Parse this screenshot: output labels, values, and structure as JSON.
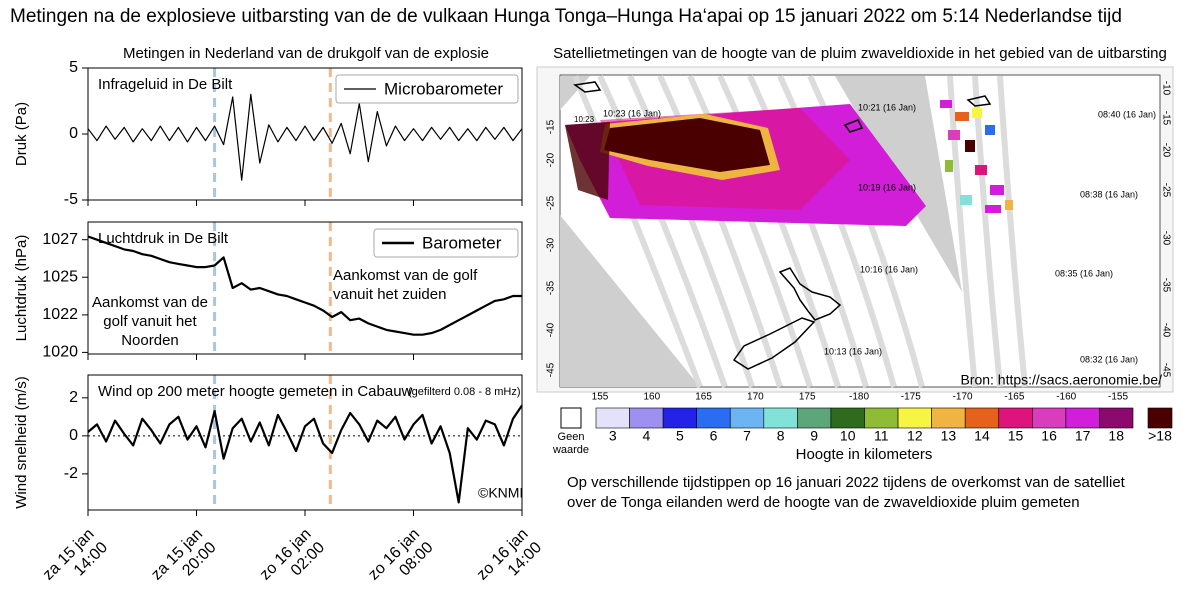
{
  "title": "Metingen na de explosieve uitbarsting van de de vulkaan Hunga Tonga–Hunga Ha‘apai  op 15 januari 2022 om 5:14 Nederlandse tijd",
  "column_title": "Metingen in Nederland van de drukgolf van de explosie",
  "arrival_lines": [
    {
      "x": 7.0,
      "color": "#a9c4e4"
    },
    {
      "x": 13.4,
      "color": "#f3b98b"
    }
  ],
  "chart_data": [
    {
      "type": "line",
      "title": "Infrageluid in De Bilt",
      "ylabel": "Druk (Pa)",
      "x": [
        0,
        0.5,
        1,
        1.5,
        2,
        2.5,
        3,
        3.5,
        4,
        4.5,
        5,
        5.5,
        6,
        6.5,
        7,
        7.5,
        8,
        8.5,
        9,
        9.5,
        10,
        10.5,
        11,
        11.5,
        12,
        12.5,
        13,
        13.5,
        14,
        14.5,
        15,
        15.5,
        16,
        16.5,
        17,
        17.5,
        18,
        18.5,
        19,
        19.5,
        20,
        20.5,
        21,
        21.5,
        22,
        22.5,
        23,
        23.5,
        24
      ],
      "xlim": [
        0,
        24
      ],
      "ylim": [
        -5,
        5
      ],
      "yticks": [
        5,
        0,
        -5
      ],
      "legend": "upper right",
      "series": [
        {
          "name": "Microbarometer",
          "color": "#000000",
          "values": [
            0.4,
            -0.5,
            0.6,
            -0.4,
            0.5,
            -0.6,
            0.4,
            -0.5,
            0.6,
            -0.5,
            0.5,
            -0.6,
            0.5,
            -0.5,
            0.6,
            -0.8,
            2.8,
            -3.5,
            3.0,
            -2.2,
            0.7,
            -0.6,
            0.5,
            -0.5,
            0.6,
            -0.5,
            0.5,
            -0.7,
            0.8,
            -1.5,
            2.3,
            -2.1,
            1.7,
            -0.9,
            0.6,
            -0.5,
            0.4,
            -0.5,
            0.5,
            -0.4,
            0.5,
            -0.5,
            0.4,
            -0.5,
            0.5,
            -0.4,
            0.5,
            -0.5,
            0.4
          ]
        }
      ]
    },
    {
      "type": "line",
      "title": "Luchtdruk in De Bilt",
      "ylabel": "Luchtdruk (hPa)",
      "x": [
        0,
        0.5,
        1,
        1.5,
        2,
        2.5,
        3,
        3.5,
        4,
        4.5,
        5,
        5.5,
        6,
        6.5,
        7,
        7.5,
        8,
        8.5,
        9,
        9.5,
        10,
        10.5,
        11,
        11.5,
        12,
        12.5,
        13,
        13.5,
        14,
        14.5,
        15,
        15.5,
        16,
        16.5,
        17,
        17.5,
        18,
        18.5,
        19,
        19.5,
        20,
        20.5,
        21,
        21.5,
        22,
        22.5,
        23,
        23.5,
        24
      ],
      "xlim": [
        0,
        24
      ],
      "ylim": [
        1019.9,
        1028.1
      ],
      "yticks": [
        1027,
        {
          "value": 1024.67,
          "label": "1025"
        },
        {
          "value": 1022.33,
          "label": "1022"
        },
        1020
      ],
      "legend": "upper right",
      "series": [
        {
          "name": "Barometer",
          "color": "#000000",
          "values": [
            1027.2,
            1027.0,
            1026.8,
            1026.6,
            1026.4,
            1026.3,
            1026.1,
            1026.0,
            1025.8,
            1025.6,
            1025.5,
            1025.4,
            1025.3,
            1025.3,
            1025.4,
            1025.9,
            1024.0,
            1024.3,
            1023.9,
            1024.0,
            1023.8,
            1023.6,
            1023.5,
            1023.3,
            1023.1,
            1022.9,
            1022.6,
            1022.2,
            1022.5,
            1022.0,
            1022.1,
            1021.8,
            1021.6,
            1021.4,
            1021.3,
            1021.2,
            1021.1,
            1021.1,
            1021.2,
            1021.4,
            1021.7,
            1022.0,
            1022.3,
            1022.6,
            1022.9,
            1023.2,
            1023.3,
            1023.5,
            1023.5
          ]
        }
      ],
      "annotations": [
        {
          "text": [
            "Aankomst van de",
            "golf vanuit het",
            "Noorden"
          ],
          "color": "#a9c4e4"
        },
        {
          "text": [
            "Aankomst van de golf",
            "vanuit het zuiden"
          ],
          "color": "#f3b98b"
        }
      ]
    },
    {
      "type": "line",
      "title": "Wind op 200 meter hoogte gemeten in Cabauw",
      "subtitle": "(gefilterd 0.08 - 8 mHz)",
      "ylabel": "Wind snelheid (m/s)",
      "credit": "©KNMI",
      "color": "#000000",
      "x": [
        0,
        0.5,
        1,
        1.5,
        2,
        2.5,
        3,
        3.5,
        4,
        4.5,
        5,
        5.5,
        6,
        6.5,
        7,
        7.5,
        8,
        8.5,
        9,
        9.5,
        10,
        10.5,
        11,
        11.5,
        12,
        12.5,
        13,
        13.5,
        14,
        14.5,
        15,
        15.5,
        16,
        16.5,
        17,
        17.5,
        18,
        18.5,
        19,
        19.5,
        20,
        20.5,
        21,
        21.5,
        22,
        22.5,
        23,
        23.5,
        24
      ],
      "values": [
        0.2,
        0.6,
        -0.3,
        0.8,
        0.1,
        -0.5,
        0.9,
        0.3,
        -0.4,
        0.6,
        1.0,
        -0.2,
        0.5,
        -0.6,
        1.3,
        -1.2,
        0.4,
        0.9,
        -0.3,
        0.7,
        -0.5,
        1.1,
        0.2,
        -0.8,
        0.5,
        0.9,
        -0.4,
        -0.9,
        0.3,
        1.2,
        0.6,
        -0.3,
        0.8,
        0.4,
        1.0,
        -0.2,
        0.6,
        1.1,
        -0.4,
        0.5,
        -0.9,
        -3.5,
        0.4,
        -0.2,
        0.8,
        0.6,
        -0.5,
        0.9,
        1.6
      ],
      "xlim": [
        0,
        24
      ],
      "ylim": [
        -3.9,
        3.2
      ],
      "yticks": [
        2,
        0,
        -2
      ],
      "hlines": [
        0
      ],
      "xticks": [
        {
          "value": 0,
          "label": "za 15 jan\n14:00"
        },
        {
          "value": 6,
          "label": "za 15 jan\n20:00"
        },
        {
          "value": 12,
          "label": "zo 16 jan\n02:00"
        },
        {
          "value": 18,
          "label": "zo 16 jan\n08:00"
        },
        {
          "value": 24,
          "label": "zo 16 jan\n14:00"
        }
      ]
    }
  ],
  "satellite": {
    "title": "Satellietmetingen van de hoogte van de pluim zwaveldioxide in het gebied van de uitbarsting",
    "lon_labels": [
      155,
      160,
      165,
      170,
      175,
      -180,
      -175,
      -170,
      -165,
      -160,
      -155
    ],
    "lat_labels_left": [
      -15,
      -20,
      -25,
      -30,
      -35,
      -40,
      -45
    ],
    "lat_labels_right": [
      -10,
      -15,
      -20,
      -25,
      -30,
      -35,
      -40,
      -45
    ],
    "time_labels": [
      "10:23",
      "10:23 (16 Jan)",
      "10:21 (16 Jan)",
      "08:40 (16 Jan)",
      "10:19 (16 Jan)",
      "08:38 (16 Jan)",
      "10:16 (16 Jan)",
      "08:35 (16 Jan)",
      "10:13 (16 Jan)",
      "08:32 (16 Jan)"
    ],
    "source": "Bron: https://sacs.aeronomie.be/",
    "colorbar": {
      "no_value": "Geen\nwaarde",
      "labels": [
        3,
        4,
        5,
        6,
        7,
        8,
        9,
        10,
        11,
        12,
        13,
        14,
        15,
        16,
        17,
        18
      ],
      "colors": [
        "#e4e2fa",
        "#9d90f0",
        "#2222e8",
        "#2a6df2",
        "#6cb4f2",
        "#82e2da",
        "#5da67a",
        "#2f6b1c",
        "#8fbb36",
        "#f5f542",
        "#f0b442",
        "#e6621c",
        "#df137c",
        "#d93cbc",
        "#d21ed8",
        "#8c0a6e"
      ],
      "top_label": ">18",
      "top_color": "#4a0000",
      "title": "Hoogte in kilometers"
    },
    "caption": [
      "Op verschillende tijdstippen op 16 januari 2022 tijdens de overkomst van de satelliet",
      "over de Tonga eilanden werd de hoogte van de zwaveldioxide pluim gemeten"
    ]
  }
}
